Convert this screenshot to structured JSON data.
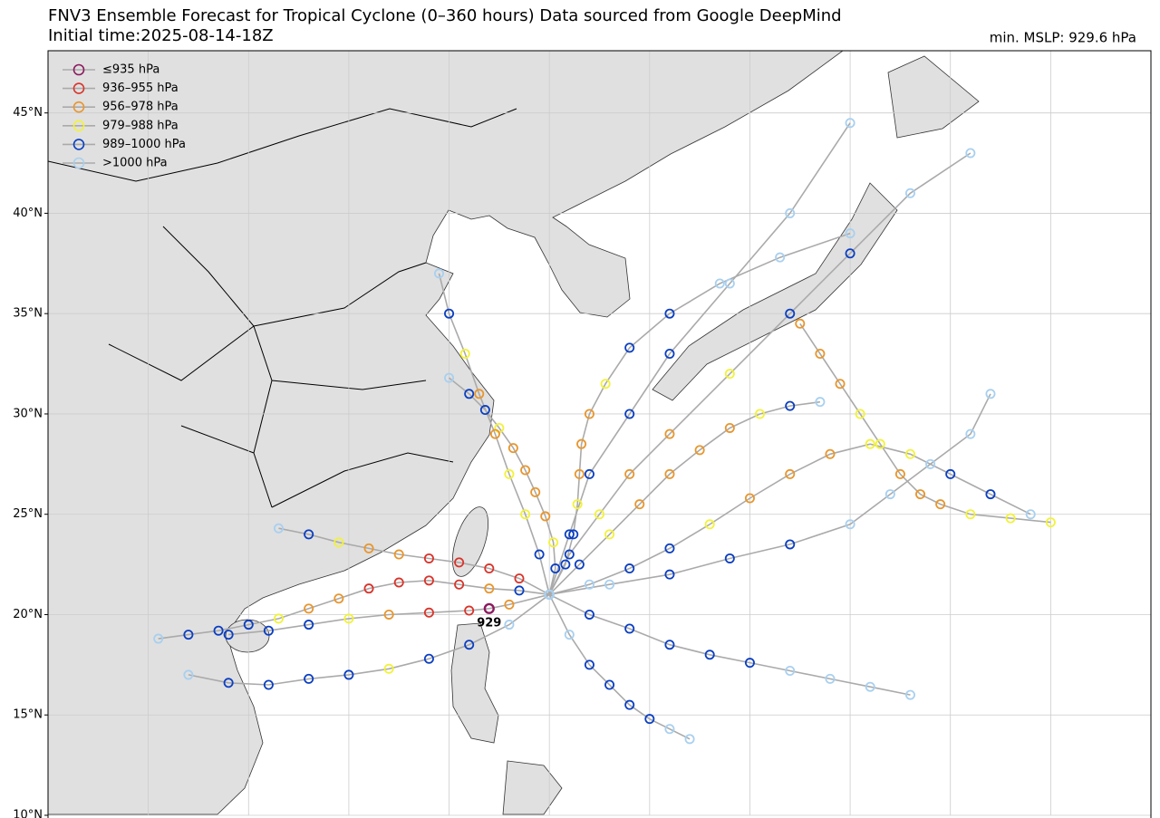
{
  "title": "FNV3 Ensemble Forecast for Tropical Cyclone (0–360 hours) Data sourced from Google DeepMind",
  "subtitle": "Initial time:2025-08-14-18Z",
  "min_label": "min. MSLP: 929.6 hPa",
  "map": {
    "lonlim": [
      100,
      155
    ],
    "latlim": [
      10,
      48.1
    ],
    "latticks": [
      {
        "value": 10,
        "label": "10°N"
      },
      {
        "value": 15,
        "label": "15°N"
      },
      {
        "value": 20,
        "label": "20°N"
      },
      {
        "value": 25,
        "label": "25°N"
      },
      {
        "value": 30,
        "label": "30°N"
      },
      {
        "value": 35,
        "label": "35°N"
      },
      {
        "value": 40,
        "label": "40°N"
      },
      {
        "value": 45,
        "label": "45°N"
      }
    ],
    "lonticks": [
      105,
      110,
      115,
      120,
      125,
      130,
      135,
      140,
      145,
      150
    ],
    "grid": true,
    "track_color": "#aaaaaa"
  },
  "legend": [
    {
      "name": "≤935 hPa",
      "color": "#8b1a5e"
    },
    {
      "name": "936–955 hPa",
      "color": "#d9342b"
    },
    {
      "name": "956–978 hPa",
      "color": "#e8962e"
    },
    {
      "name": "979–988 hPa",
      "color": "#f2f23a"
    },
    {
      "name": "989–1000 hPa",
      "color": "#0b3fc2"
    },
    {
      "name": ">1000 hPa",
      "color": "#a8d0f0"
    }
  ],
  "annotation": {
    "text": "929",
    "lon": 122,
    "lat": 20.3
  },
  "tracks": [
    {
      "lon": [
        125,
        123.5,
        122,
        120.5,
        119,
        117.5,
        116,
        114.5,
        113,
        111.5,
        110,
        108.5,
        107,
        105.5
      ],
      "lat": [
        21,
        21.2,
        21.3,
        21.5,
        21.7,
        21.6,
        21.3,
        20.8,
        20.3,
        19.8,
        19.5,
        19.2,
        19.0,
        18.8
      ],
      "cat": [
        5,
        4,
        2,
        1,
        1,
        1,
        1,
        2,
        2,
        3,
        4,
        4,
        4,
        5
      ]
    },
    {
      "lon": [
        125,
        125.3,
        125.2,
        124.8,
        124.3,
        123.8,
        123.2,
        122.5,
        121.8,
        121,
        120
      ],
      "lat": [
        21,
        22.3,
        23.6,
        24.9,
        26.1,
        27.2,
        28.3,
        29.3,
        30.2,
        31,
        31.8
      ],
      "cat": [
        5,
        4,
        3,
        2,
        2,
        2,
        2,
        3,
        4,
        4,
        5
      ]
    },
    {
      "lon": [
        125,
        125.8,
        126.2,
        126.4,
        126.5,
        126.6,
        127,
        127.8,
        129,
        131,
        133.5,
        136.5,
        140
      ],
      "lat": [
        21,
        22.5,
        24,
        25.5,
        27,
        28.5,
        30,
        31.5,
        33.3,
        35,
        36.5,
        37.8,
        39
      ],
      "cat": [
        5,
        4,
        4,
        3,
        2,
        2,
        2,
        3,
        4,
        4,
        5,
        5,
        5
      ]
    },
    {
      "lon": [
        125,
        126.5,
        128,
        129.5,
        131,
        132.5,
        134,
        135.5,
        137,
        138.5
      ],
      "lat": [
        21,
        22.5,
        24,
        25.5,
        27,
        28.2,
        29.3,
        30,
        30.4,
        30.6
      ],
      "cat": [
        5,
        4,
        3,
        2,
        2,
        2,
        2,
        3,
        4,
        5
      ]
    },
    {
      "lon": [
        125,
        127,
        129,
        131,
        133,
        135,
        137,
        139,
        141,
        143,
        145,
        147,
        149
      ],
      "lat": [
        21,
        21.5,
        22.3,
        23.3,
        24.5,
        25.8,
        27,
        28,
        28.5,
        28,
        27,
        26,
        25
      ],
      "cat": [
        5,
        5,
        4,
        4,
        3,
        2,
        2,
        2,
        3,
        3,
        4,
        4,
        5
      ]
    },
    {
      "lon": [
        125,
        123,
        121,
        119,
        117,
        115,
        113,
        111,
        109,
        107
      ],
      "lat": [
        21,
        19.5,
        18.5,
        17.8,
        17.3,
        17,
        16.8,
        16.5,
        16.6,
        17
      ],
      "cat": [
        5,
        5,
        4,
        4,
        3,
        4,
        4,
        4,
        4,
        5
      ]
    },
    {
      "lon": [
        125,
        123.5,
        122,
        120.5,
        119,
        117.5,
        116,
        114.5,
        113,
        111.5
      ],
      "lat": [
        21,
        21.8,
        22.3,
        22.6,
        22.8,
        23,
        23.3,
        23.6,
        24,
        24.3
      ],
      "cat": [
        5,
        1,
        1,
        1,
        1,
        2,
        2,
        3,
        4,
        5
      ]
    },
    {
      "lon": [
        125,
        127,
        129,
        131,
        133,
        135,
        137,
        139,
        141,
        143
      ],
      "lat": [
        21,
        20,
        19.3,
        18.5,
        18,
        17.6,
        17.2,
        16.8,
        16.4,
        16
      ],
      "cat": [
        5,
        4,
        4,
        4,
        4,
        4,
        5,
        5,
        5,
        5
      ]
    },
    {
      "lon": [
        125,
        124.5,
        123.8,
        123,
        122.3,
        121.5,
        120.8,
        120,
        119.5
      ],
      "lat": [
        21,
        23,
        25,
        27,
        29,
        31,
        33,
        35,
        37
      ],
      "cat": [
        5,
        4,
        3,
        3,
        2,
        2,
        3,
        4,
        5
      ]
    },
    {
      "lon": [
        125,
        126,
        127.5,
        129,
        131,
        134,
        137,
        140,
        143,
        146
      ],
      "lat": [
        21,
        23,
        25,
        27,
        29,
        32,
        35,
        38,
        41,
        43
      ],
      "cat": [
        5,
        4,
        3,
        2,
        2,
        3,
        4,
        4,
        5,
        5
      ]
    },
    {
      "lon": [
        125,
        128,
        131,
        134,
        137,
        140,
        142,
        144,
        146,
        147
      ],
      "lat": [
        21,
        21.5,
        22,
        22.8,
        23.5,
        24.5,
        26,
        27.5,
        29,
        31
      ],
      "cat": [
        5,
        5,
        4,
        4,
        4,
        5,
        5,
        5,
        5,
        5
      ]
    },
    {
      "lon": [
        137.5,
        138.5,
        139.5,
        140.5,
        141.5,
        142.5,
        143.5,
        144.5,
        146,
        148,
        150
      ],
      "lat": [
        34.5,
        33,
        31.5,
        30,
        28.5,
        27,
        26,
        25.5,
        25,
        24.8,
        24.6
      ],
      "cat": [
        2,
        2,
        2,
        3,
        3,
        2,
        2,
        2,
        3,
        3,
        3
      ]
    },
    {
      "lon": [
        125,
        126,
        127,
        128,
        129,
        130,
        131,
        132
      ],
      "lat": [
        21,
        19,
        17.5,
        16.5,
        15.5,
        14.8,
        14.3,
        13.8
      ],
      "cat": [
        5,
        5,
        4,
        4,
        4,
        4,
        5,
        5
      ]
    },
    {
      "lon": [
        125,
        123,
        122,
        121,
        119,
        117,
        115,
        113,
        111,
        109
      ],
      "lat": [
        21,
        20.5,
        20.3,
        20.2,
        20.1,
        20,
        19.8,
        19.5,
        19.2,
        19
      ],
      "cat": [
        5,
        2,
        0,
        1,
        1,
        2,
        3,
        4,
        4,
        4
      ]
    },
    {
      "lon": [
        125,
        126,
        127,
        129,
        131,
        134,
        137,
        140
      ],
      "lat": [
        21,
        24,
        27,
        30,
        33,
        36.5,
        40,
        44.5
      ],
      "cat": [
        5,
        4,
        4,
        4,
        4,
        5,
        5,
        5
      ]
    }
  ]
}
